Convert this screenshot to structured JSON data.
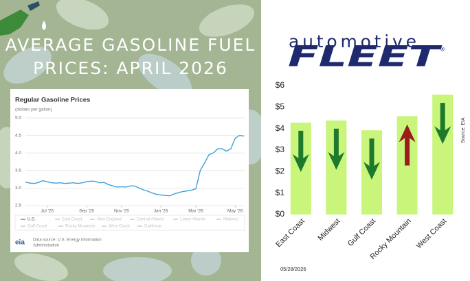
{
  "header": {
    "title_lines": [
      "AVERAGE GASOLINE FUEL",
      "PRICES: APRIL 2026"
    ]
  },
  "chart_data": [
    {
      "type": "line",
      "title": "Regular Gasoline Prices",
      "subtitle": "(dollars per gallon)",
      "categories": [
        null,
        null,
        null,
        null,
        null,
        "Jul '25",
        null,
        null,
        null,
        null,
        null,
        null,
        null,
        null,
        "Sep '25",
        null,
        null,
        null,
        null,
        null,
        null,
        null,
        "Nov '25",
        null,
        null,
        null,
        null,
        null,
        null,
        null,
        null,
        "Jan '26",
        null,
        null,
        null,
        null,
        null,
        null,
        null,
        "Mar '26",
        null,
        null,
        null,
        null,
        null,
        null,
        null,
        null,
        "May '26",
        null,
        null
      ],
      "series": [
        {
          "name": "U.S.",
          "color": "#3aa0d8",
          "values": [
            3.17,
            3.14,
            3.13,
            3.16,
            3.21,
            3.18,
            3.15,
            3.14,
            3.15,
            3.13,
            3.14,
            3.15,
            3.13,
            3.15,
            3.18,
            3.2,
            3.19,
            3.15,
            3.16,
            3.1,
            3.06,
            3.03,
            3.04,
            3.03,
            3.06,
            3.06,
            3.0,
            2.95,
            2.91,
            2.86,
            2.82,
            2.8,
            2.79,
            2.78,
            2.83,
            2.87,
            2.9,
            2.92,
            2.94,
            2.98,
            3.5,
            3.72,
            3.95,
            4.0,
            4.12,
            4.12,
            4.05,
            4.12,
            4.42,
            4.5,
            4.48
          ]
        }
      ],
      "hidden_series": [
        "East Coast",
        "New England",
        "Central Atlantic",
        "Lower Atlantic",
        "Midwest",
        "Gulf Coast",
        "Rocky Mountain",
        "West Coast",
        "California"
      ],
      "hidden_color": "#cccccc",
      "ylim": [
        2.5,
        5.0
      ],
      "yticks": [
        2.5,
        {
          "value": 3,
          "label": "3.0"
        },
        3.5,
        {
          "value": 4,
          "label": "4.0"
        },
        4.5,
        {
          "value": 5,
          "label": "5.0"
        }
      ],
      "grid": true,
      "logo": "eia",
      "source_lines": [
        "Data source: U.S. Energy Information",
        "Administration"
      ]
    },
    {
      "type": "bar",
      "logo_top": "automotive",
      "logo_main": "FLEET",
      "logo_mark": "®",
      "categories": [
        "East Coast",
        "Midwest",
        "Gulf Coast",
        "Rocky Mountain",
        "West Coast"
      ],
      "values": [
        4.28,
        4.38,
        3.92,
        4.58,
        5.58
      ],
      "color": "#c8f57a",
      "trend": [
        "down",
        "down",
        "down",
        "up",
        "down"
      ],
      "trend_colors": {
        "down": "#1d7a2c",
        "up": "#9b1c1c"
      },
      "ylim": [
        0,
        6
      ],
      "yticks": [
        {
          "value": 0,
          "label": "$0"
        },
        {
          "value": 1,
          "label": "$1"
        },
        {
          "value": 2,
          "label": "$2"
        },
        {
          "value": 3,
          "label": "$3"
        },
        {
          "value": 4,
          "label": "$4"
        },
        {
          "value": 5,
          "label": "$5"
        },
        {
          "value": 6,
          "label": "$6"
        }
      ],
      "source": "Source: EIA",
      "date": "05/28/2026"
    }
  ]
}
